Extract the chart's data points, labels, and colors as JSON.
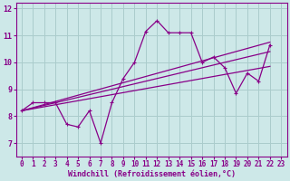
{
  "background_color": "#cde8e8",
  "grid_color": "#aacccc",
  "line_color": "#880088",
  "xlabel": "Windchill (Refroidissement éolien,°C)",
  "xlabel_fontsize": 6,
  "tick_fontsize": 5.5,
  "xlim": [
    -0.5,
    23.5
  ],
  "ylim": [
    6.5,
    12.2
  ],
  "yticks": [
    7,
    8,
    9,
    10,
    11,
    12
  ],
  "xticks": [
    0,
    1,
    2,
    3,
    4,
    5,
    6,
    7,
    8,
    9,
    10,
    11,
    12,
    13,
    14,
    15,
    16,
    17,
    18,
    19,
    20,
    21,
    22,
    23
  ],
  "series0_x": [
    0,
    1,
    2,
    3,
    4,
    5,
    6,
    7,
    8,
    9,
    10,
    11,
    12,
    13,
    14,
    15,
    16,
    17,
    18,
    19,
    20,
    21,
    22
  ],
  "series0_y": [
    8.2,
    8.5,
    8.5,
    8.5,
    7.7,
    7.6,
    8.2,
    7.0,
    8.5,
    9.4,
    10.0,
    11.15,
    11.55,
    11.1,
    11.1,
    11.1,
    10.0,
    10.2,
    9.8,
    8.85,
    9.6,
    9.3,
    10.65
  ],
  "series1_x": [
    0,
    22
  ],
  "series1_y": [
    8.2,
    9.85
  ],
  "series2_x": [
    0,
    22
  ],
  "series2_y": [
    8.2,
    10.4
  ],
  "series3_x": [
    0,
    22
  ],
  "series3_y": [
    8.2,
    10.75
  ]
}
